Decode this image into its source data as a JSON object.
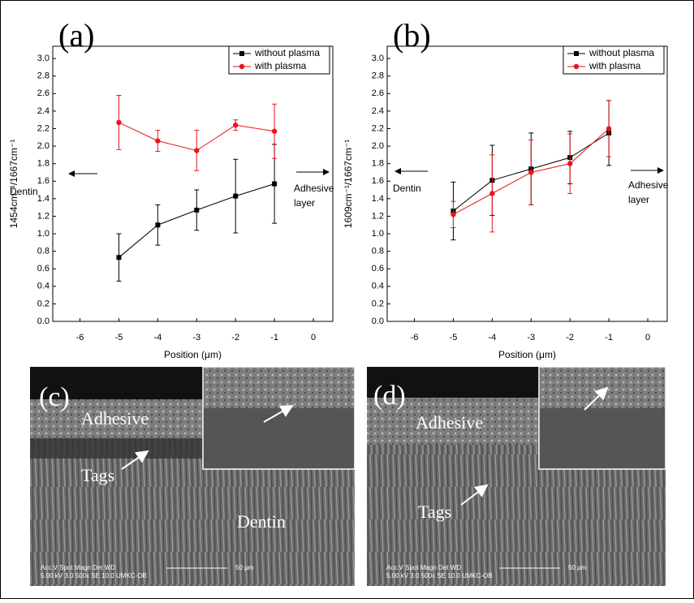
{
  "chart_data": [
    {
      "type": "line",
      "panel_label": "(a)",
      "y_label": "1454cm⁻¹/1667cm⁻¹",
      "x_label": "Position (μm)",
      "annotations": [
        "Dentin",
        "Adhesive",
        "layer"
      ],
      "x": [
        -5,
        -4,
        -3,
        -2,
        -1
      ],
      "series": [
        {
          "name": "without plasma",
          "color": "#000000",
          "marker": "square",
          "values": [
            0.73,
            1.1,
            1.27,
            1.43,
            1.57
          ],
          "errors": [
            0.27,
            0.23,
            0.23,
            0.42,
            0.45
          ]
        },
        {
          "name": "with plasma",
          "color": "#e8161c",
          "marker": "circle",
          "values": [
            2.27,
            2.06,
            1.95,
            2.24,
            2.17
          ],
          "errors": [
            0.31,
            0.12,
            0.23,
            0.06,
            0.31
          ]
        }
      ],
      "xlim": [
        -6.7,
        0.5
      ],
      "xticks": [
        -6,
        -5,
        -4,
        -3,
        -2,
        -1,
        0
      ],
      "ylim": [
        0,
        3.14
      ],
      "yticks": [
        {
          "value": 0,
          "label": "0.0"
        },
        0.2,
        0.4,
        0.6,
        0.8,
        {
          "value": 1,
          "label": "1.0"
        },
        1.2,
        1.4,
        1.6,
        1.8,
        {
          "value": 2,
          "label": "2.0"
        },
        2.2,
        2.4,
        2.6,
        2.8,
        {
          "value": 3,
          "label": "3.0"
        }
      ],
      "legend": "upper right"
    },
    {
      "type": "line",
      "panel_label": "(b)",
      "y_label": "1609cm⁻¹/1667cm⁻¹",
      "x_label": "Position (μm)",
      "annotations": [
        "Dentin",
        "Adhesive",
        "layer"
      ],
      "x": [
        -5,
        -4,
        -3,
        -2,
        -1
      ],
      "series": [
        {
          "name": "without plasma",
          "color": "#000000",
          "marker": "square",
          "values": [
            1.26,
            1.61,
            1.74,
            1.87,
            2.15
          ],
          "errors": [
            0.33,
            0.4,
            0.41,
            0.3,
            0.37
          ]
        },
        {
          "name": "with plasma",
          "color": "#e8161c",
          "marker": "circle",
          "values": [
            1.22,
            1.46,
            1.7,
            1.8,
            2.2
          ],
          "errors": [
            0.15,
            0.44,
            0.37,
            0.34,
            0.32
          ]
        }
      ],
      "xlim": [
        -6.7,
        0.5
      ],
      "xticks": [
        -6,
        -5,
        -4,
        -3,
        -2,
        -1,
        0
      ],
      "ylim": [
        0,
        3.14
      ],
      "yticks": [
        {
          "value": 0,
          "label": "0.0"
        },
        0.2,
        0.4,
        0.6,
        0.8,
        {
          "value": 1,
          "label": "1.0"
        },
        1.2,
        1.4,
        1.6,
        1.8,
        {
          "value": 2,
          "label": "2.0"
        },
        2.2,
        2.4,
        2.6,
        2.8,
        {
          "value": 3,
          "label": "3.0"
        }
      ],
      "legend": "upper right"
    }
  ],
  "images": [
    {
      "label": "(c)",
      "texts": [
        "Adhesive",
        "Tags",
        "Dentin"
      ],
      "scale": "50 μm",
      "info_top": "Acc.V  Spot Magn    Det  WD",
      "info_bottom": "5.00 kV 3.0   500x    SE  10.0  UMKC-OB"
    },
    {
      "label": "(d)",
      "texts": [
        "Adhesive",
        "Tags"
      ],
      "scale": "50 μm",
      "info_top": "Acc.V  Spot Magn    Det  WD",
      "info_bottom": "5.00 kV 3.0   500x    SE  10.0  UMKC-OB"
    }
  ]
}
